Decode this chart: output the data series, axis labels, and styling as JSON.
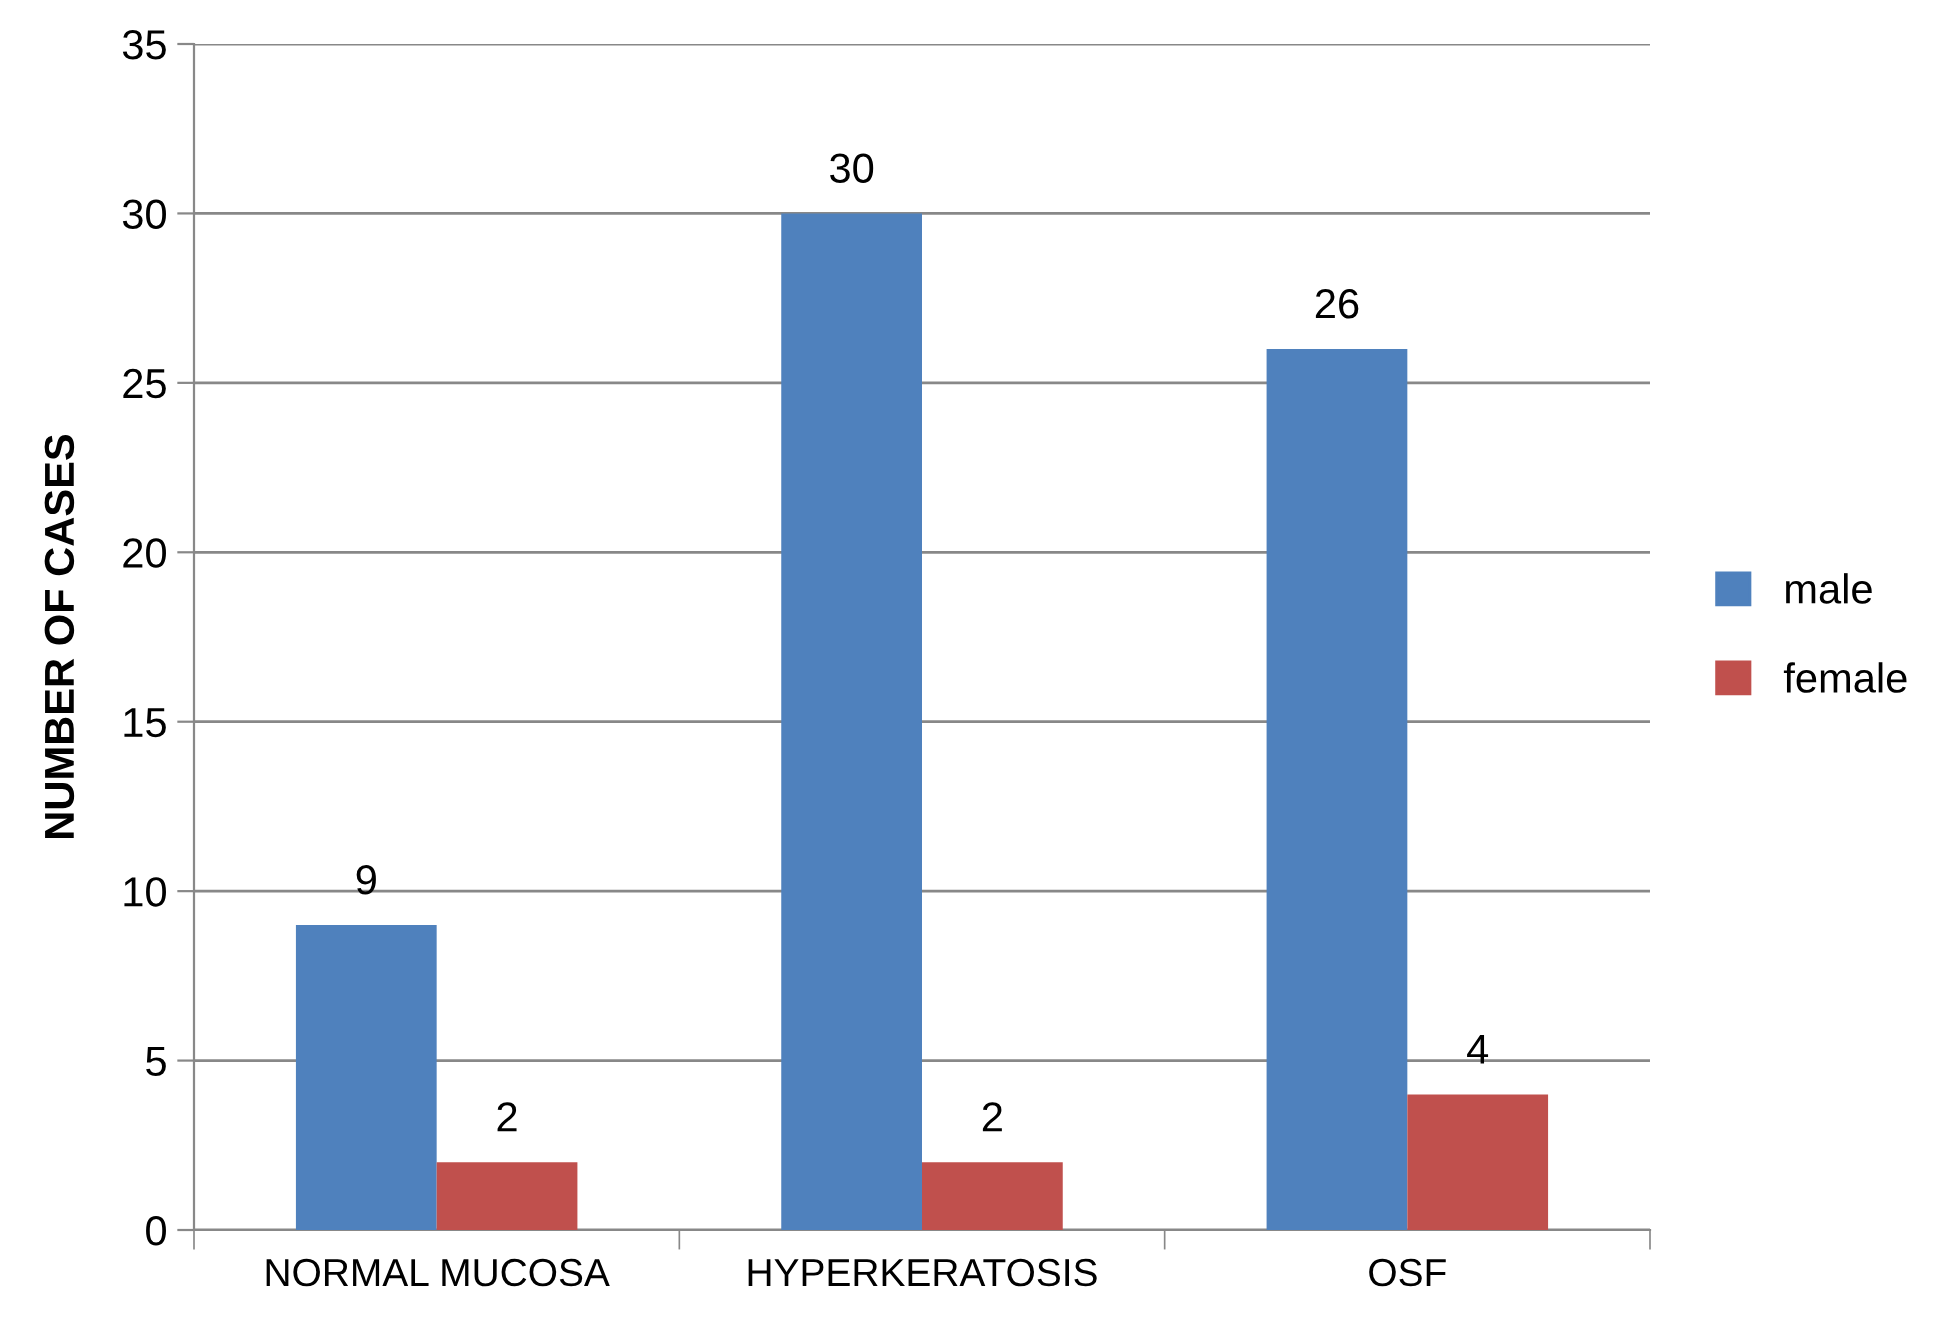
{
  "chart_data": {
    "type": "bar",
    "ylabel": "NUMBER OF CASES",
    "categories": [
      "NORMAL MUCOSA",
      "HYPERKERATOSIS",
      "OSF"
    ],
    "series": [
      {
        "name": "male",
        "color": "#4f81bd",
        "values": [
          9,
          30,
          26
        ]
      },
      {
        "name": "female",
        "color": "#c0504d",
        "values": [
          2,
          2,
          4
        ]
      }
    ],
    "ylim": [
      0,
      35
    ],
    "yticks": [
      0,
      5,
      10,
      15,
      20,
      25,
      30,
      35
    ],
    "grid": "y",
    "legend": "right",
    "data_labels": true
  }
}
